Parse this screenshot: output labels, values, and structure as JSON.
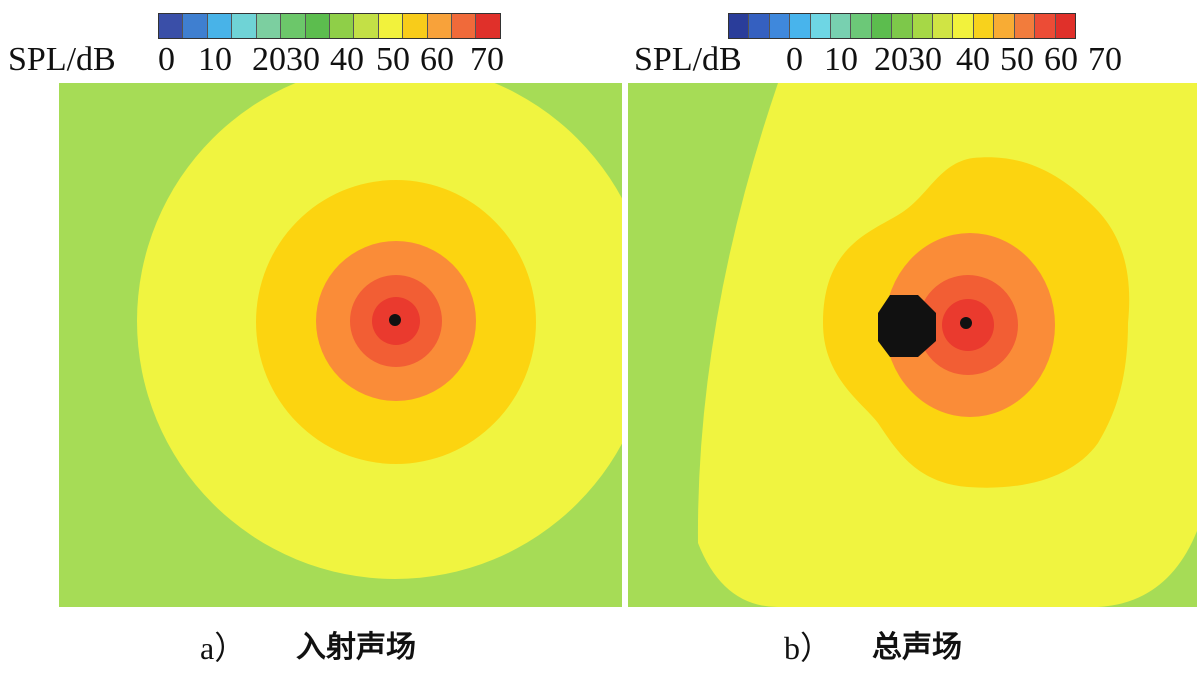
{
  "panels": [
    {
      "id": "a",
      "unit_label": "SPL/dB",
      "tick_labels": [
        "0",
        "10",
        "20",
        "30",
        "40",
        "50",
        "60",
        "70"
      ],
      "colorbar_colors": [
        "#3a4fa8",
        "#3f7fd0",
        "#48b3e8",
        "#6fd3d6",
        "#7ccfa0",
        "#6cc76a",
        "#5cbd4e",
        "#8fcf48",
        "#c3e046",
        "#f2f23c",
        "#f8cc1a",
        "#f8a23a",
        "#f06a3a",
        "#e0302a"
      ],
      "caption_label": "a）",
      "caption_title": "入射声场",
      "field_colors": [
        "#a6dc56",
        "#f0f440",
        "#fcd410",
        "#fa8c38",
        "#f25e34",
        "#ea3a2e",
        "#111111"
      ]
    },
    {
      "id": "b",
      "unit_label": "SPL/dB",
      "tick_labels": [
        "0",
        "10",
        "20",
        "30",
        "40",
        "50",
        "60",
        "70"
      ],
      "colorbar_colors": [
        "#2a3d9a",
        "#3560c0",
        "#3f88dc",
        "#48b4ec",
        "#6ed6e4",
        "#78d0b0",
        "#6cc878",
        "#5cbd4e",
        "#7dc84a",
        "#a6d846",
        "#d0e444",
        "#f2f23c",
        "#f8d21c",
        "#f8ac34",
        "#f27c3c",
        "#ec4c36",
        "#e0302a"
      ],
      "caption_label": "b）",
      "caption_title": "总声场",
      "field_colors": [
        "#a6dc56",
        "#f0f440",
        "#fcd410",
        "#fa8c38",
        "#f25e34",
        "#ea3a2e",
        "#111111"
      ]
    }
  ]
}
